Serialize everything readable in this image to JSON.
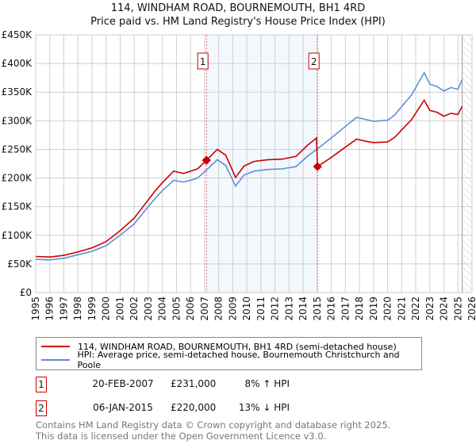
{
  "chart_data": {
    "type": "line",
    "title": "114, WINDHAM ROAD, BOURNEMOUTH, BH1 4RD",
    "subtitle": "Price paid vs. HM Land Registry's House Price Index (HPI)",
    "xlim": [
      1995,
      2026
    ],
    "ylim": [
      0,
      450000
    ],
    "x_ticks": [
      "1995",
      "1996",
      "1997",
      "1998",
      "1999",
      "2000",
      "2001",
      "2002",
      "2003",
      "2004",
      "2005",
      "2006",
      "2007",
      "2008",
      "2009",
      "2010",
      "2011",
      "2012",
      "2013",
      "2014",
      "2015",
      "2016",
      "2017",
      "2018",
      "2019",
      "2020",
      "2021",
      "2022",
      "2023",
      "2024",
      "2025",
      "2026"
    ],
    "y_ticks": [
      {
        "value": 0,
        "label": "£0"
      },
      {
        "value": 50000,
        "label": "£50K"
      },
      {
        "value": 100000,
        "label": "£100K"
      },
      {
        "value": 150000,
        "label": "£150K"
      },
      {
        "value": 200000,
        "label": "£200K"
      },
      {
        "value": 250000,
        "label": "£250K"
      },
      {
        "value": 300000,
        "label": "£300K"
      },
      {
        "value": 350000,
        "label": "£350K"
      },
      {
        "value": 400000,
        "label": "£400K"
      },
      {
        "value": 450000,
        "label": "£450K"
      }
    ],
    "grid": true,
    "shaded_range": [
      2007.13,
      2015.02
    ],
    "forecast_hatch_from": 2025.3,
    "series": [
      {
        "name": "114, WINDHAM ROAD, BOURNEMOUTH, BH1 4RD (semi-detached house)",
        "color": "#cc0000",
        "points": [
          [
            1995,
            63000
          ],
          [
            1996,
            62000
          ],
          [
            1997,
            65000
          ],
          [
            1998,
            71000
          ],
          [
            1999,
            78000
          ],
          [
            2000,
            89000
          ],
          [
            2001,
            108000
          ],
          [
            2002,
            130000
          ],
          [
            2003,
            162000
          ],
          [
            2003.5,
            178000
          ],
          [
            2004,
            192000
          ],
          [
            2004.8,
            212000
          ],
          [
            2005.5,
            208000
          ],
          [
            2006,
            212000
          ],
          [
            2006.5,
            216000
          ],
          [
            2007.13,
            231000
          ],
          [
            2007.9,
            250000
          ],
          [
            2008.5,
            240000
          ],
          [
            2009.2,
            201000
          ],
          [
            2009.8,
            221000
          ],
          [
            2010.5,
            229000
          ],
          [
            2011.5,
            232000
          ],
          [
            2012.5,
            233000
          ],
          [
            2013.5,
            238000
          ],
          [
            2014.3,
            257000
          ],
          [
            2014.95,
            270000
          ],
          [
            2015.02,
            220000
          ],
          [
            2016,
            236000
          ],
          [
            2017,
            254000
          ],
          [
            2017.8,
            268000
          ],
          [
            2018.5,
            264000
          ],
          [
            2019,
            262000
          ],
          [
            2020,
            263000
          ],
          [
            2020.5,
            271000
          ],
          [
            2021,
            284000
          ],
          [
            2021.7,
            302000
          ],
          [
            2022.6,
            336000
          ],
          [
            2023,
            318000
          ],
          [
            2023.5,
            315000
          ],
          [
            2024,
            308000
          ],
          [
            2024.5,
            313000
          ],
          [
            2025,
            311000
          ],
          [
            2025.3,
            325000
          ]
        ]
      },
      {
        "name": "HPI: Average price, semi-detached house, Bournemouth Christchurch and Poole",
        "color": "#5b8fd4",
        "points": [
          [
            1995,
            58000
          ],
          [
            1996,
            57000
          ],
          [
            1997,
            60000
          ],
          [
            1998,
            66000
          ],
          [
            1999,
            72000
          ],
          [
            2000,
            82000
          ],
          [
            2001,
            100000
          ],
          [
            2002,
            120000
          ],
          [
            2003,
            150000
          ],
          [
            2003.5,
            165000
          ],
          [
            2004,
            178000
          ],
          [
            2004.8,
            196000
          ],
          [
            2005.5,
            193000
          ],
          [
            2006,
            196000
          ],
          [
            2006.5,
            200000
          ],
          [
            2007.13,
            214000
          ],
          [
            2007.9,
            232000
          ],
          [
            2008.5,
            222000
          ],
          [
            2009.2,
            186000
          ],
          [
            2009.8,
            205000
          ],
          [
            2010.5,
            212000
          ],
          [
            2011.5,
            215000
          ],
          [
            2012.5,
            216000
          ],
          [
            2013.5,
            220000
          ],
          [
            2014.3,
            238000
          ],
          [
            2015.02,
            251000
          ],
          [
            2016,
            270000
          ],
          [
            2017,
            290000
          ],
          [
            2017.8,
            306000
          ],
          [
            2018.5,
            302000
          ],
          [
            2019,
            299000
          ],
          [
            2020,
            301000
          ],
          [
            2020.5,
            310000
          ],
          [
            2021,
            325000
          ],
          [
            2021.7,
            345000
          ],
          [
            2022.6,
            384000
          ],
          [
            2023,
            364000
          ],
          [
            2023.5,
            360000
          ],
          [
            2024,
            352000
          ],
          [
            2024.5,
            358000
          ],
          [
            2025,
            355000
          ],
          [
            2025.3,
            372000
          ]
        ]
      }
    ],
    "sales": [
      {
        "num": "1",
        "x": 2007.13,
        "value": 231000,
        "date": "20-FEB-2007",
        "price": "£231,000",
        "hpi": "8% ↑ HPI"
      },
      {
        "num": "2",
        "x": 2015.02,
        "value": 220000,
        "date": "06-JAN-2015",
        "price": "£220,000",
        "hpi": "13% ↓ HPI"
      }
    ]
  },
  "footer": {
    "line1": "Contains HM Land Registry data © Crown copyright and database right 2025.",
    "line2": "This data is licensed under the Open Government Licence v3.0."
  }
}
